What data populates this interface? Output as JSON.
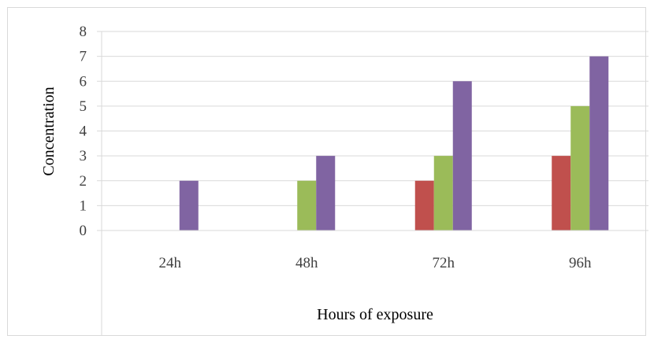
{
  "chart_data": {
    "type": "bar",
    "title": "",
    "xlabel": "Hours of exposure",
    "ylabel": "Concentration",
    "categories": [
      "24h",
      "48h",
      "72h",
      "96h"
    ],
    "ylim": [
      0,
      8
    ],
    "yticks": [
      0,
      1,
      2,
      3,
      4,
      5,
      6,
      7,
      8
    ],
    "grid": true,
    "legend": "none",
    "series": [
      {
        "color": "#c0504d",
        "values": [
          0,
          0,
          2,
          3
        ]
      },
      {
        "color": "#9bbb59",
        "values": [
          0,
          2,
          3,
          5
        ]
      },
      {
        "color": "#8064a2",
        "values": [
          2,
          3,
          6,
          7
        ]
      }
    ]
  }
}
